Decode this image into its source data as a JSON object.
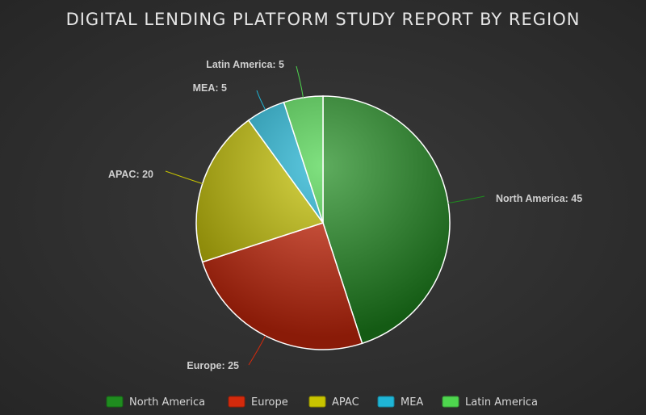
{
  "chart_data": {
    "type": "pie",
    "title": "DIGITAL LENDING PLATFORM STUDY REPORT BY REGION",
    "categories": [
      "North America",
      "Europe",
      "APAC",
      "MEA",
      "Latin America"
    ],
    "values": [
      45,
      25,
      20,
      5,
      5
    ],
    "colors": [
      "#1f8c1f",
      "#d42a0c",
      "#c8c400",
      "#1fb5d6",
      "#4ed64e"
    ],
    "data_labels": [
      "North America: 45",
      "Europe: 25",
      "APAC: 20",
      "MEA: 5",
      "Latin America: 5"
    ],
    "legend_position": "bottom"
  }
}
